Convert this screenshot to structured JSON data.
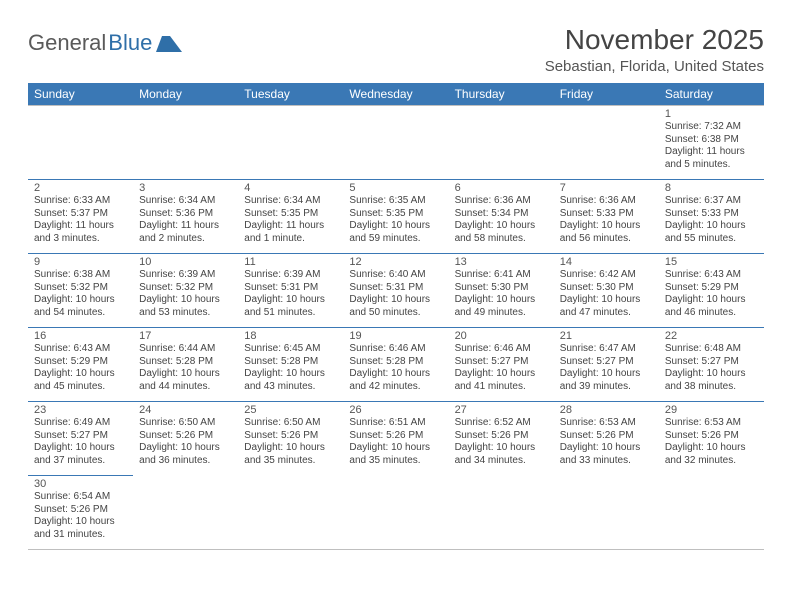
{
  "brand": {
    "word1": "General",
    "word2": "Blue",
    "logo_color": "#2f6fa8"
  },
  "title": "November 2025",
  "location": "Sebastian, Florida, United States",
  "header_bg": "#3a78b5",
  "header_fg": "#ffffff",
  "weekdays": [
    "Sunday",
    "Monday",
    "Tuesday",
    "Wednesday",
    "Thursday",
    "Friday",
    "Saturday"
  ],
  "leading_blanks": 6,
  "days": [
    {
      "n": 1,
      "sr": "7:32 AM",
      "ss": "6:38 PM",
      "dl": "11 hours and 5 minutes."
    },
    {
      "n": 2,
      "sr": "6:33 AM",
      "ss": "5:37 PM",
      "dl": "11 hours and 3 minutes."
    },
    {
      "n": 3,
      "sr": "6:34 AM",
      "ss": "5:36 PM",
      "dl": "11 hours and 2 minutes."
    },
    {
      "n": 4,
      "sr": "6:34 AM",
      "ss": "5:35 PM",
      "dl": "11 hours and 1 minute."
    },
    {
      "n": 5,
      "sr": "6:35 AM",
      "ss": "5:35 PM",
      "dl": "10 hours and 59 minutes."
    },
    {
      "n": 6,
      "sr": "6:36 AM",
      "ss": "5:34 PM",
      "dl": "10 hours and 58 minutes."
    },
    {
      "n": 7,
      "sr": "6:36 AM",
      "ss": "5:33 PM",
      "dl": "10 hours and 56 minutes."
    },
    {
      "n": 8,
      "sr": "6:37 AM",
      "ss": "5:33 PM",
      "dl": "10 hours and 55 minutes."
    },
    {
      "n": 9,
      "sr": "6:38 AM",
      "ss": "5:32 PM",
      "dl": "10 hours and 54 minutes."
    },
    {
      "n": 10,
      "sr": "6:39 AM",
      "ss": "5:32 PM",
      "dl": "10 hours and 53 minutes."
    },
    {
      "n": 11,
      "sr": "6:39 AM",
      "ss": "5:31 PM",
      "dl": "10 hours and 51 minutes."
    },
    {
      "n": 12,
      "sr": "6:40 AM",
      "ss": "5:31 PM",
      "dl": "10 hours and 50 minutes."
    },
    {
      "n": 13,
      "sr": "6:41 AM",
      "ss": "5:30 PM",
      "dl": "10 hours and 49 minutes."
    },
    {
      "n": 14,
      "sr": "6:42 AM",
      "ss": "5:30 PM",
      "dl": "10 hours and 47 minutes."
    },
    {
      "n": 15,
      "sr": "6:43 AM",
      "ss": "5:29 PM",
      "dl": "10 hours and 46 minutes."
    },
    {
      "n": 16,
      "sr": "6:43 AM",
      "ss": "5:29 PM",
      "dl": "10 hours and 45 minutes."
    },
    {
      "n": 17,
      "sr": "6:44 AM",
      "ss": "5:28 PM",
      "dl": "10 hours and 44 minutes."
    },
    {
      "n": 18,
      "sr": "6:45 AM",
      "ss": "5:28 PM",
      "dl": "10 hours and 43 minutes."
    },
    {
      "n": 19,
      "sr": "6:46 AM",
      "ss": "5:28 PM",
      "dl": "10 hours and 42 minutes."
    },
    {
      "n": 20,
      "sr": "6:46 AM",
      "ss": "5:27 PM",
      "dl": "10 hours and 41 minutes."
    },
    {
      "n": 21,
      "sr": "6:47 AM",
      "ss": "5:27 PM",
      "dl": "10 hours and 39 minutes."
    },
    {
      "n": 22,
      "sr": "6:48 AM",
      "ss": "5:27 PM",
      "dl": "10 hours and 38 minutes."
    },
    {
      "n": 23,
      "sr": "6:49 AM",
      "ss": "5:27 PM",
      "dl": "10 hours and 37 minutes."
    },
    {
      "n": 24,
      "sr": "6:50 AM",
      "ss": "5:26 PM",
      "dl": "10 hours and 36 minutes."
    },
    {
      "n": 25,
      "sr": "6:50 AM",
      "ss": "5:26 PM",
      "dl": "10 hours and 35 minutes."
    },
    {
      "n": 26,
      "sr": "6:51 AM",
      "ss": "5:26 PM",
      "dl": "10 hours and 35 minutes."
    },
    {
      "n": 27,
      "sr": "6:52 AM",
      "ss": "5:26 PM",
      "dl": "10 hours and 34 minutes."
    },
    {
      "n": 28,
      "sr": "6:53 AM",
      "ss": "5:26 PM",
      "dl": "10 hours and 33 minutes."
    },
    {
      "n": 29,
      "sr": "6:53 AM",
      "ss": "5:26 PM",
      "dl": "10 hours and 32 minutes."
    },
    {
      "n": 30,
      "sr": "6:54 AM",
      "ss": "5:26 PM",
      "dl": "10 hours and 31 minutes."
    }
  ],
  "labels": {
    "sunrise": "Sunrise: ",
    "sunset": "Sunset: ",
    "daylight": "Daylight: "
  }
}
